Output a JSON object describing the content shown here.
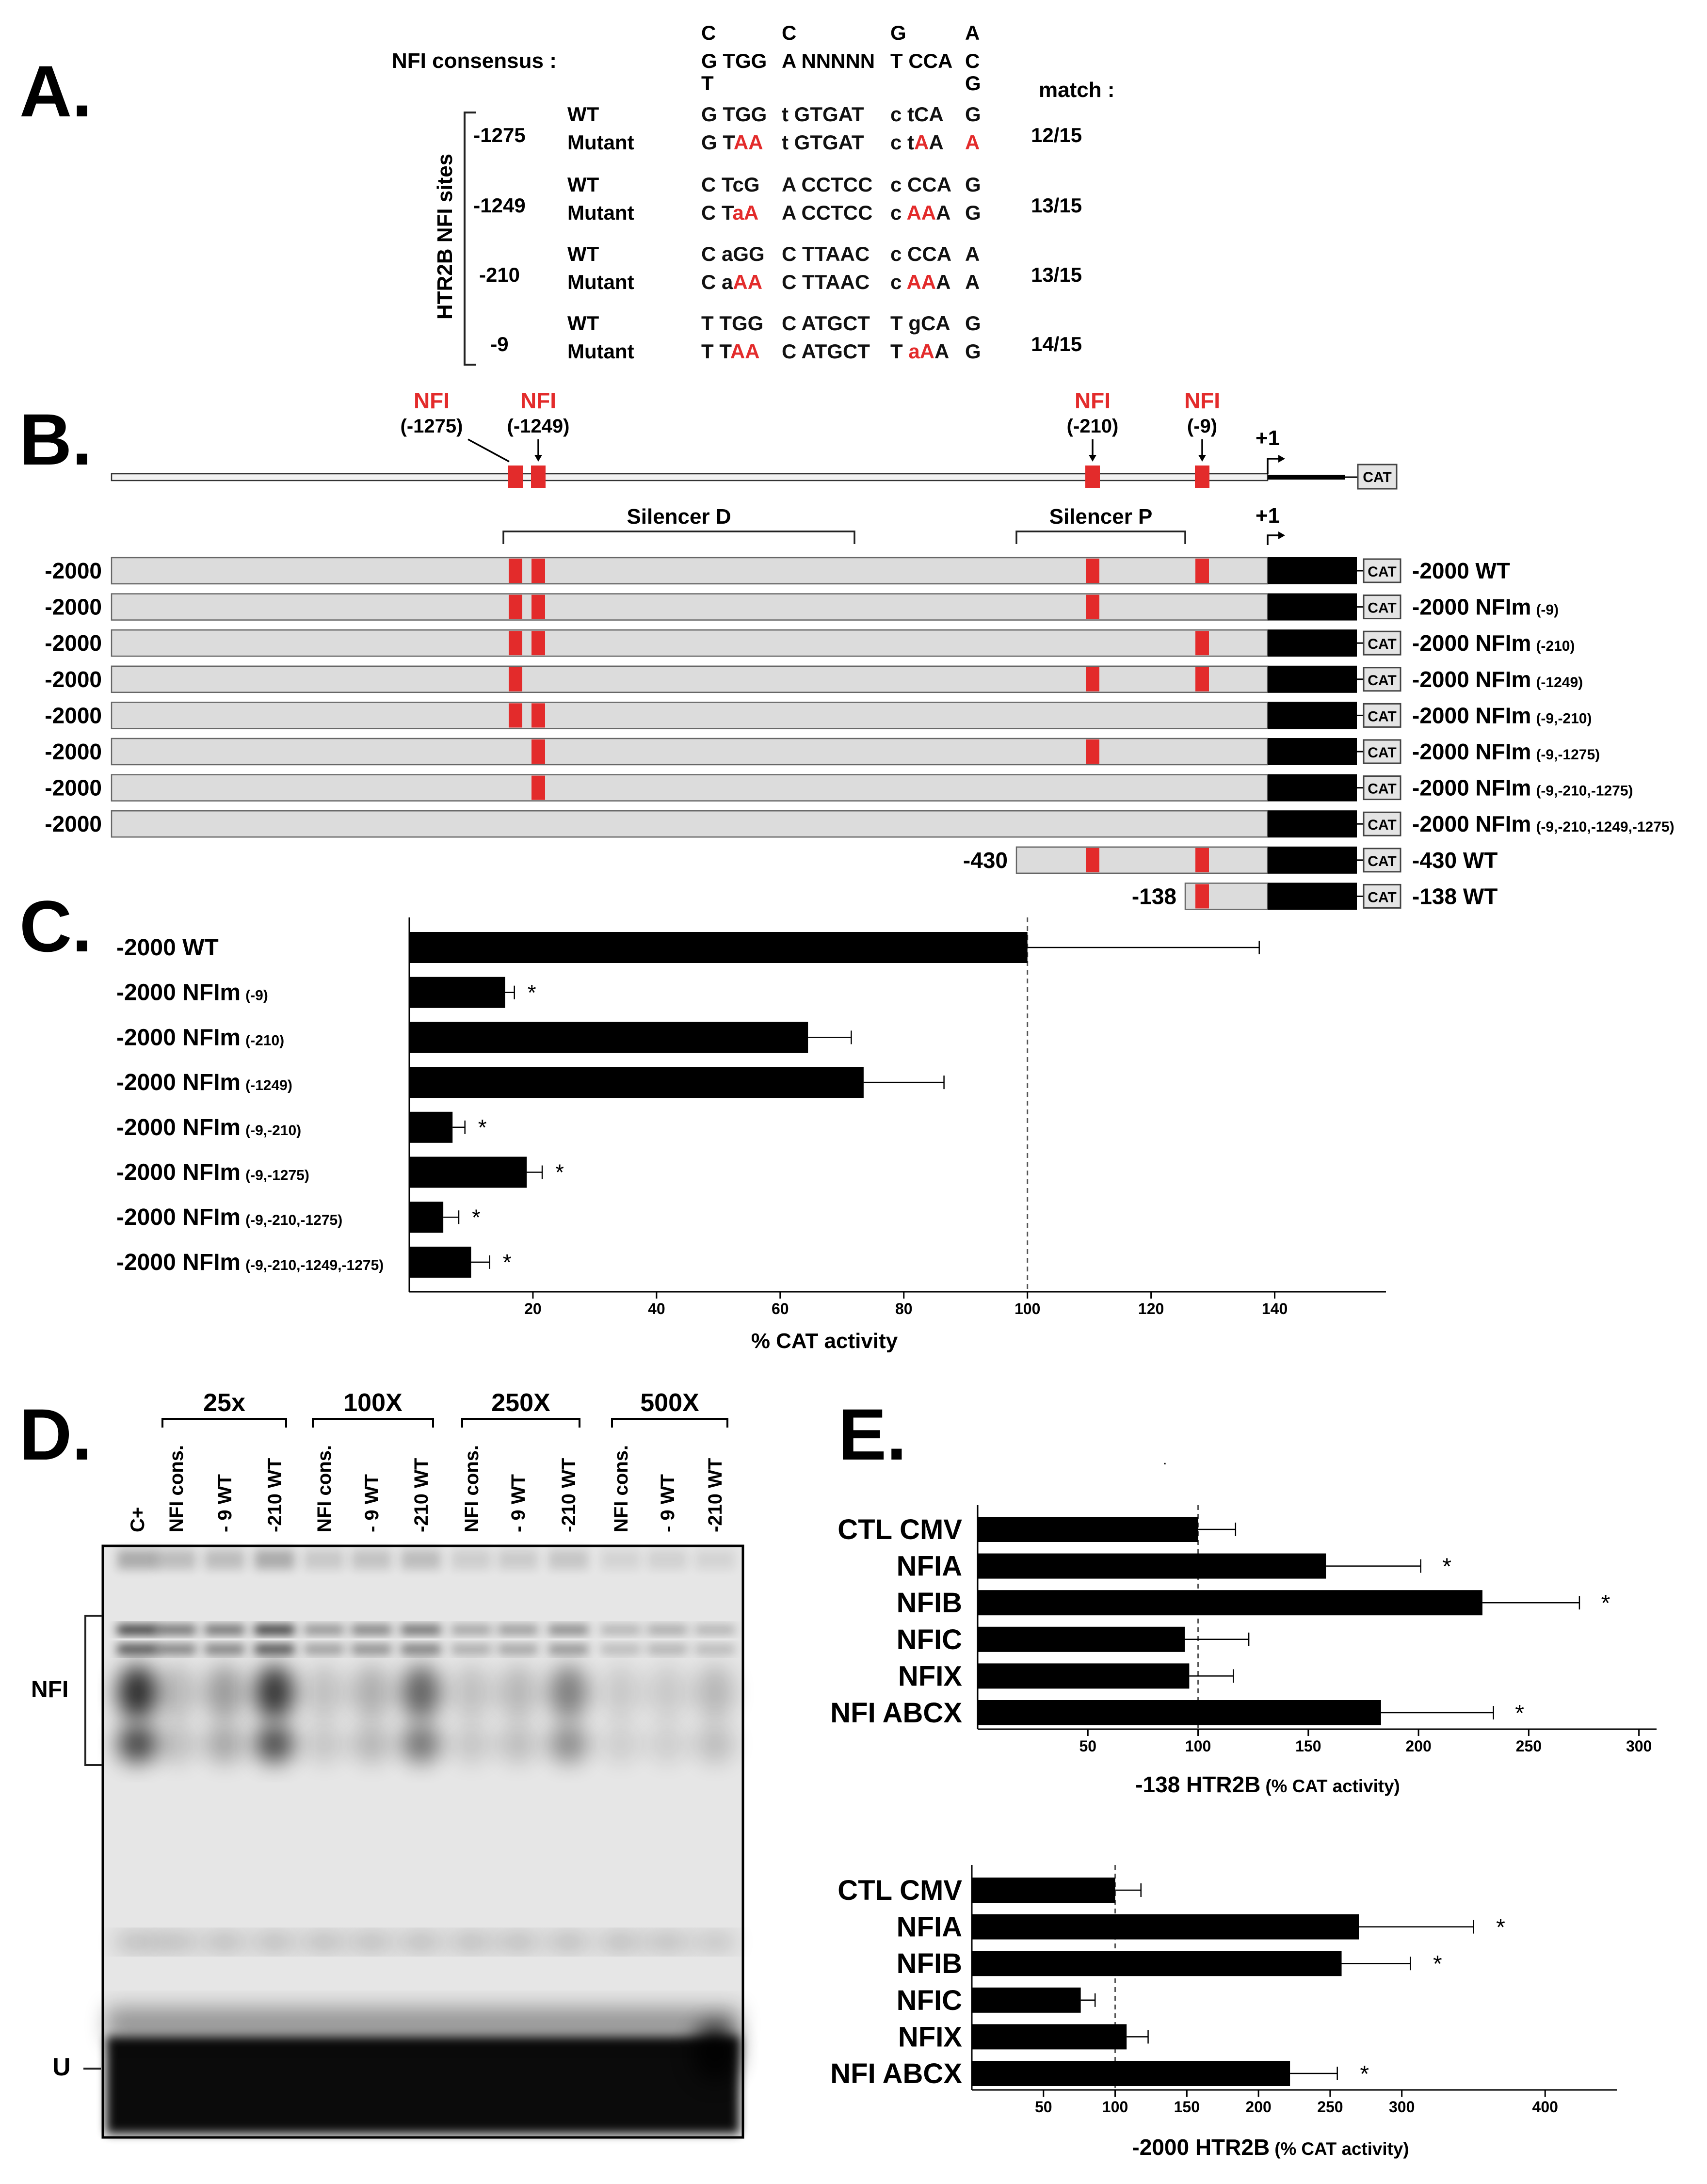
{
  "colors": {
    "nfi_red": "#e32b2b",
    "bar": "#000000",
    "promoter_fill": "#dcdcdc"
  },
  "panelA": {
    "letter": "A.",
    "consensus_label": "NFI consensus :",
    "consensus_top": [
      "C",
      "C",
      "G",
      "A"
    ],
    "consensus_main": [
      "G TGG",
      "A NNNNN",
      "T CCA",
      "C"
    ],
    "consensus_bottom": [
      "T",
      "G"
    ],
    "side_label": "HTR2B NFI sites",
    "match_header": "match :",
    "sites": [
      {
        "pos": "-1275",
        "match": "12/15",
        "wt": {
          "label": "WT",
          "seq": [
            [
              [
                "G TGG",
                "k"
              ]
            ],
            [
              [
                "t GTGAT",
                "k"
              ]
            ],
            [
              [
                "c tCA",
                "k"
              ]
            ],
            [
              [
                "G",
                "k"
              ]
            ]
          ]
        },
        "mut": {
          "label": "Mutant",
          "seq": [
            [
              [
                "G T",
                "k"
              ],
              [
                "AA",
                "r"
              ]
            ],
            [
              [
                "t GTGAT",
                "k"
              ]
            ],
            [
              [
                "c t",
                "k"
              ],
              [
                "A",
                "r"
              ],
              [
                "A",
                "k"
              ]
            ],
            [
              [
                "A",
                "r"
              ]
            ]
          ]
        }
      },
      {
        "pos": "-1249",
        "match": "13/15",
        "wt": {
          "label": "WT",
          "seq": [
            [
              [
                "C TcG",
                "k"
              ]
            ],
            [
              [
                "A CCTCC",
                "k"
              ]
            ],
            [
              [
                "c CCA",
                "k"
              ]
            ],
            [
              [
                "G",
                "k"
              ]
            ]
          ]
        },
        "mut": {
          "label": "Mutant",
          "seq": [
            [
              [
                "C T",
                "k"
              ],
              [
                "aA",
                "r"
              ]
            ],
            [
              [
                "A CCTCC",
                "k"
              ]
            ],
            [
              [
                "c ",
                "k"
              ],
              [
                "AA",
                "r"
              ],
              [
                "A",
                "k"
              ]
            ],
            [
              [
                "G",
                "k"
              ]
            ]
          ]
        }
      },
      {
        "pos": "-210",
        "match": "13/15",
        "wt": {
          "label": "WT",
          "seq": [
            [
              [
                "C aGG",
                "k"
              ]
            ],
            [
              [
                "C TTAAC",
                "k"
              ]
            ],
            [
              [
                "c CCA",
                "k"
              ]
            ],
            [
              [
                "A",
                "k"
              ]
            ]
          ]
        },
        "mut": {
          "label": "Mutant",
          "seq": [
            [
              [
                "C a",
                "k"
              ],
              [
                "AA",
                "r"
              ]
            ],
            [
              [
                "C TTAAC",
                "k"
              ]
            ],
            [
              [
                "c ",
                "k"
              ],
              [
                "AA",
                "r"
              ],
              [
                "A",
                "k"
              ]
            ],
            [
              [
                "A",
                "k"
              ]
            ]
          ]
        }
      },
      {
        "pos": "-9",
        "match": "14/15",
        "wt": {
          "label": "WT",
          "seq": [
            [
              [
                "T TGG",
                "k"
              ]
            ],
            [
              [
                "C ATGCT",
                "k"
              ]
            ],
            [
              [
                "T gCA",
                "k"
              ]
            ],
            [
              [
                "G",
                "k"
              ]
            ]
          ]
        },
        "mut": {
          "label": "Mutant",
          "seq": [
            [
              [
                "T T",
                "k"
              ],
              [
                "AA",
                "r"
              ]
            ],
            [
              [
                "C ATGCT",
                "k"
              ]
            ],
            [
              [
                "T ",
                "k"
              ],
              [
                "aA",
                "r"
              ],
              [
                "A",
                "k"
              ]
            ],
            [
              [
                "G",
                "k"
              ]
            ]
          ]
        }
      }
    ]
  },
  "panelB": {
    "letter": "B.",
    "nfi_label": "NFI",
    "site_positions": [
      -1275,
      -1249,
      -210,
      -9
    ],
    "site_labels": [
      "(-1275)",
      "(-1249)",
      "(-210)",
      "(-9)"
    ],
    "tss_label": "+1",
    "cat_label": "CAT",
    "silencer_d": "Silencer D",
    "silencer_p": "Silencer P",
    "constructs": [
      {
        "start": "-2000",
        "start_pos": -2000,
        "sites": [
          -1275,
          -1249,
          -210,
          -9
        ],
        "name": "-2000 WT",
        "sub": ""
      },
      {
        "start": "-2000",
        "start_pos": -2000,
        "sites": [
          -1275,
          -1249,
          -210
        ],
        "name": "-2000 NFIm",
        "sub": "(-9)"
      },
      {
        "start": "-2000",
        "start_pos": -2000,
        "sites": [
          -1275,
          -1249,
          -9
        ],
        "name": "-2000 NFIm",
        "sub": "(-210)"
      },
      {
        "start": "-2000",
        "start_pos": -2000,
        "sites": [
          -1275,
          -210,
          -9
        ],
        "name": "-2000 NFIm",
        "sub": "(-1249)"
      },
      {
        "start": "-2000",
        "start_pos": -2000,
        "sites": [
          -1275,
          -1249
        ],
        "name": "-2000 NFIm",
        "sub": "(-9,-210)"
      },
      {
        "start": "-2000",
        "start_pos": -2000,
        "sites": [
          -1249,
          -210
        ],
        "name": "-2000 NFIm",
        "sub": "(-9,-1275)"
      },
      {
        "start": "-2000",
        "start_pos": -2000,
        "sites": [
          -1249
        ],
        "name": "-2000 NFIm",
        "sub": "(-9,-210,-1275)"
      },
      {
        "start": "-2000",
        "start_pos": -2000,
        "sites": [],
        "name": "-2000 NFIm",
        "sub": "(-9,-210,-1249,-1275)"
      },
      {
        "start": "-430",
        "start_pos": -430,
        "sites": [
          -210,
          -9
        ],
        "name": "-430 WT",
        "sub": ""
      },
      {
        "start": "-138",
        "start_pos": -138,
        "sites": [
          -9
        ],
        "name": "-138 WT",
        "sub": ""
      }
    ]
  },
  "panelC": {
    "letter": "C."
  },
  "panelD": {
    "letter": "D.",
    "groups": [
      "25x",
      "100X",
      "250X",
      "500X"
    ],
    "lanes": [
      "C+",
      "NFI cons.",
      "- 9 WT",
      "-210 WT",
      "NFI cons.",
      "- 9 WT",
      "-210 WT",
      "NFI cons.",
      "- 9 WT",
      "-210 WT",
      "NFI cons.",
      "- 9 WT",
      "-210 WT"
    ],
    "nfi_label": "NFI",
    "u_label": "U"
  },
  "panelE": {
    "letter": "E.",
    "stray_mark": "."
  },
  "chart_data": [
    {
      "type": "bar",
      "orientation": "horizontal",
      "categories": [
        "-2000 WT",
        "-2000 NFIm (-9)",
        "-2000 NFIm (-210)",
        "-2000 NFIm (-1249)",
        "-2000 NFIm (-9,-210)",
        "-2000 NFIm (-9,-1275)",
        "-2000 NFIm (-9,-210,-1275)",
        "-2000 NFIm (-9,-210,-1249,-1275)"
      ],
      "values": [
        100,
        15.5,
        64.5,
        73.5,
        7,
        19,
        5.5,
        10
      ],
      "errors": [
        37.5,
        1.5,
        7,
        13,
        2,
        2.5,
        2.5,
        3
      ],
      "significant": [
        false,
        true,
        false,
        false,
        true,
        true,
        true,
        true
      ],
      "sig_mark": "*",
      "xlabel": "% CAT activity",
      "xticks": [
        20,
        40,
        60,
        80,
        100,
        120,
        140
      ],
      "xlim": [
        0,
        158
      ],
      "reference_line": 100
    },
    {
      "type": "bar",
      "orientation": "horizontal",
      "categories": [
        "CTL CMV",
        "NFIA",
        "NFIB",
        "NFIC",
        "NFIX",
        "NFI ABCX"
      ],
      "values": [
        100,
        158,
        229,
        94,
        96,
        183
      ],
      "errors": [
        17,
        43,
        44,
        29,
        20,
        51
      ],
      "significant": [
        false,
        true,
        true,
        false,
        false,
        true
      ],
      "sig_mark": "*",
      "xlabel": "-138 HTR2B",
      "xlabel_unit": "(% CAT activity)",
      "xticks": [
        50,
        100,
        150,
        200,
        250,
        300
      ],
      "xlim": [
        0,
        308
      ],
      "reference_line": 100
    },
    {
      "type": "bar",
      "orientation": "horizontal",
      "categories": [
        "CTL CMV",
        "NFIA",
        "NFIB",
        "NFIC",
        "NFIX",
        "NFI ABCX"
      ],
      "values": [
        100,
        270,
        258,
        76,
        108,
        222
      ],
      "errors": [
        18,
        80,
        48,
        10,
        15,
        33
      ],
      "significant": [
        false,
        true,
        true,
        false,
        false,
        true
      ],
      "sig_mark": "*",
      "xlabel": "-2000 HTR2B",
      "xlabel_unit": "(% CAT activity)",
      "xticks": [
        50,
        100,
        150,
        200,
        250,
        300,
        400
      ],
      "xlim": [
        0,
        450
      ],
      "reference_line": 100
    }
  ]
}
